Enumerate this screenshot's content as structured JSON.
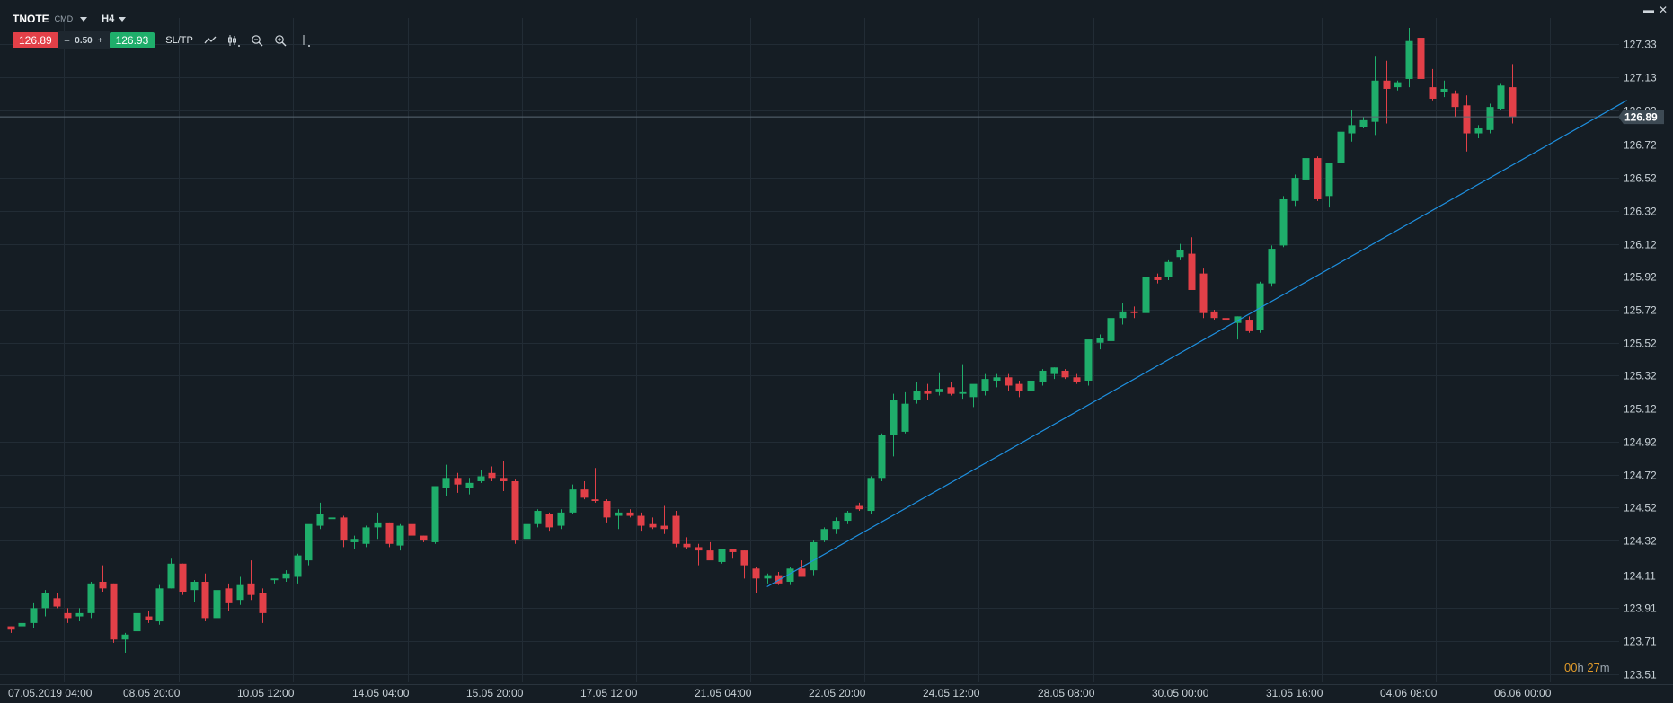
{
  "header": {
    "symbol": "TNOTE",
    "symbol_type": "CMD",
    "timeframe": "H4",
    "sell_price": "126.89",
    "spread_minus": "–",
    "spread_value": "0.50",
    "spread_plus": "+",
    "buy_price": "126.93",
    "sltp_label": "SL/TP",
    "icons": [
      "line-chart-icon",
      "candles-icon",
      "zoom-out-icon",
      "zoom-in-icon",
      "crosshair-icon"
    ]
  },
  "window_controls": {
    "minimize": "▬",
    "close": "✕"
  },
  "countdown": {
    "hours": "00",
    "h": "h",
    "minutes": "27",
    "m": "m"
  },
  "colors": {
    "background": "#151d24",
    "grid": "#222c35",
    "bull": "#1fae6b",
    "bear": "#e24048",
    "trendline": "#1e90e0",
    "price_line": "#5b6973",
    "price_label_bg": "#3d4a54"
  },
  "chart_data": {
    "type": "candlestick",
    "instrument": "TNOTE",
    "timeframe": "H4",
    "y_ticks": [
      "127.33",
      "127.13",
      "126.93",
      "126.72",
      "126.52",
      "126.32",
      "126.12",
      "125.92",
      "125.72",
      "125.52",
      "125.32",
      "125.12",
      "124.92",
      "124.72",
      "124.52",
      "124.32",
      "124.11",
      "123.91",
      "123.71",
      "123.51"
    ],
    "ylim": [
      123.46,
      127.49
    ],
    "x_ticks": [
      "07.05.2019 04:00",
      "08.05 20:00",
      "10.05 12:00",
      "14.05 04:00",
      "15.05 20:00",
      "17.05 12:00",
      "21.05 04:00",
      "22.05 20:00",
      "24.05 12:00",
      "28.05 08:00",
      "30.05 00:00",
      "31.05 16:00",
      "04.06 08:00",
      "06.06 00:00"
    ],
    "current_price": "126.89",
    "grid": true,
    "trendline": {
      "from_bar": 66,
      "from_price": 124.04,
      "to_bar": 141,
      "to_price": 126.99
    },
    "candles": [
      [
        123.8,
        123.8,
        123.76,
        123.78
      ],
      [
        123.8,
        123.84,
        123.58,
        123.82
      ],
      [
        123.82,
        123.94,
        123.79,
        123.91
      ],
      [
        123.91,
        124.02,
        123.86,
        124.0
      ],
      [
        123.97,
        124.0,
        123.91,
        123.92
      ],
      [
        123.88,
        123.91,
        123.82,
        123.85
      ],
      [
        123.86,
        123.91,
        123.83,
        123.88
      ],
      [
        123.88,
        124.07,
        123.85,
        124.06
      ],
      [
        124.07,
        124.17,
        124.01,
        124.03
      ],
      [
        124.06,
        124.06,
        123.7,
        123.72
      ],
      [
        123.72,
        123.76,
        123.64,
        123.75
      ],
      [
        123.77,
        123.97,
        123.75,
        123.88
      ],
      [
        123.86,
        123.89,
        123.82,
        123.84
      ],
      [
        123.83,
        124.05,
        123.81,
        124.03
      ],
      [
        124.03,
        124.21,
        124.03,
        124.18
      ],
      [
        124.18,
        124.18,
        123.99,
        124.01
      ],
      [
        124.02,
        124.08,
        123.95,
        124.07
      ],
      [
        124.07,
        124.12,
        123.83,
        123.85
      ],
      [
        123.85,
        124.04,
        123.84,
        124.02
      ],
      [
        124.03,
        124.06,
        123.89,
        123.94
      ],
      [
        123.96,
        124.1,
        123.93,
        124.05
      ],
      [
        124.06,
        124.2,
        123.96,
        123.99
      ],
      [
        124.0,
        124.03,
        123.82,
        123.88
      ],
      [
        124.08,
        124.09,
        124.06,
        124.09
      ],
      [
        124.09,
        124.14,
        124.07,
        124.12
      ],
      [
        124.1,
        124.24,
        124.06,
        124.23
      ],
      [
        124.2,
        124.41,
        124.17,
        124.42
      ],
      [
        124.41,
        124.55,
        124.39,
        124.48
      ],
      [
        124.45,
        124.49,
        124.43,
        124.46
      ],
      [
        124.46,
        124.47,
        124.28,
        124.32
      ],
      [
        124.31,
        124.35,
        124.27,
        124.33
      ],
      [
        124.3,
        124.41,
        124.28,
        124.4
      ],
      [
        124.4,
        124.49,
        124.33,
        124.43
      ],
      [
        124.43,
        124.43,
        124.28,
        124.3
      ],
      [
        124.29,
        124.42,
        124.26,
        124.41
      ],
      [
        124.42,
        124.44,
        124.33,
        124.35
      ],
      [
        124.35,
        124.35,
        124.31,
        124.32
      ],
      [
        124.31,
        124.64,
        124.3,
        124.65
      ],
      [
        124.64,
        124.78,
        124.59,
        124.7
      ],
      [
        124.7,
        124.73,
        124.61,
        124.66
      ],
      [
        124.64,
        124.7,
        124.6,
        124.67
      ],
      [
        124.68,
        124.75,
        124.67,
        124.71
      ],
      [
        124.73,
        124.77,
        124.68,
        124.7
      ],
      [
        124.7,
        124.8,
        124.62,
        124.68
      ],
      [
        124.68,
        124.69,
        124.3,
        124.32
      ],
      [
        124.33,
        124.43,
        124.3,
        124.42
      ],
      [
        124.42,
        124.51,
        124.4,
        124.5
      ],
      [
        124.48,
        124.49,
        124.38,
        124.4
      ],
      [
        124.41,
        124.51,
        124.39,
        124.49
      ],
      [
        124.49,
        124.66,
        124.48,
        124.63
      ],
      [
        124.63,
        124.68,
        124.57,
        124.58
      ],
      [
        124.57,
        124.76,
        124.55,
        124.56
      ],
      [
        124.56,
        124.57,
        124.43,
        124.46
      ],
      [
        124.47,
        124.51,
        124.39,
        124.49
      ],
      [
        124.49,
        124.51,
        124.46,
        124.47
      ],
      [
        124.47,
        124.49,
        124.38,
        124.41
      ],
      [
        124.42,
        124.46,
        124.39,
        124.4
      ],
      [
        124.41,
        124.53,
        124.36,
        124.39
      ],
      [
        124.47,
        124.5,
        124.28,
        124.3
      ],
      [
        124.3,
        124.34,
        124.27,
        124.28
      ],
      [
        124.28,
        124.3,
        124.17,
        124.26
      ],
      [
        124.26,
        124.31,
        124.24,
        124.2
      ],
      [
        124.19,
        124.26,
        124.18,
        124.27
      ],
      [
        124.27,
        124.27,
        124.21,
        124.25
      ],
      [
        124.26,
        124.26,
        124.09,
        124.17
      ],
      [
        124.15,
        124.16,
        124.0,
        124.09
      ],
      [
        124.09,
        124.12,
        124.06,
        124.11
      ],
      [
        124.11,
        124.13,
        124.05,
        124.06
      ],
      [
        124.07,
        124.16,
        124.05,
        124.15
      ],
      [
        124.15,
        124.2,
        124.1,
        124.1
      ],
      [
        124.14,
        124.32,
        124.11,
        124.31
      ],
      [
        124.32,
        124.4,
        124.31,
        124.39
      ],
      [
        124.39,
        124.46,
        124.36,
        124.44
      ],
      [
        124.44,
        124.5,
        124.42,
        124.49
      ],
      [
        124.53,
        124.55,
        124.5,
        124.51
      ],
      [
        124.5,
        124.71,
        124.48,
        124.7
      ],
      [
        124.7,
        124.97,
        124.68,
        124.96
      ],
      [
        124.96,
        125.21,
        124.83,
        125.17
      ],
      [
        124.98,
        125.22,
        124.97,
        125.15
      ],
      [
        125.17,
        125.28,
        125.15,
        125.23
      ],
      [
        125.23,
        125.27,
        125.17,
        125.21
      ],
      [
        125.22,
        125.34,
        125.2,
        125.24
      ],
      [
        125.25,
        125.28,
        125.2,
        125.21
      ],
      [
        125.21,
        125.39,
        125.18,
        125.22
      ],
      [
        125.19,
        125.23,
        125.13,
        125.27
      ],
      [
        125.23,
        125.33,
        125.2,
        125.3
      ],
      [
        125.29,
        125.33,
        125.25,
        125.31
      ],
      [
        125.31,
        125.33,
        125.23,
        125.26
      ],
      [
        125.27,
        125.29,
        125.19,
        125.23
      ],
      [
        125.23,
        125.3,
        125.22,
        125.29
      ],
      [
        125.28,
        125.36,
        125.26,
        125.35
      ],
      [
        125.33,
        125.37,
        125.3,
        125.37
      ],
      [
        125.35,
        125.36,
        125.3,
        125.31
      ],
      [
        125.31,
        125.33,
        125.27,
        125.28
      ],
      [
        125.29,
        125.53,
        125.26,
        125.54
      ],
      [
        125.52,
        125.57,
        125.48,
        125.55
      ],
      [
        125.53,
        125.71,
        125.46,
        125.67
      ],
      [
        125.67,
        125.76,
        125.63,
        125.71
      ],
      [
        125.71,
        125.74,
        125.67,
        125.7
      ],
      [
        125.7,
        125.93,
        125.68,
        125.92
      ],
      [
        125.92,
        125.94,
        125.88,
        125.9
      ],
      [
        125.92,
        126.02,
        125.9,
        126.01
      ],
      [
        126.04,
        126.12,
        126.02,
        126.08
      ],
      [
        126.06,
        126.16,
        125.86,
        125.84
      ],
      [
        125.94,
        125.97,
        125.67,
        125.7
      ],
      [
        125.71,
        125.72,
        125.66,
        125.67
      ],
      [
        125.67,
        125.69,
        125.65,
        125.66
      ],
      [
        125.64,
        125.68,
        125.54,
        125.68
      ],
      [
        125.66,
        125.68,
        125.58,
        125.59
      ],
      [
        125.6,
        125.89,
        125.58,
        125.88
      ],
      [
        125.88,
        126.11,
        125.86,
        126.09
      ],
      [
        126.11,
        126.41,
        126.1,
        126.39
      ],
      [
        126.38,
        126.54,
        126.35,
        126.52
      ],
      [
        126.51,
        126.61,
        126.49,
        126.64
      ],
      [
        126.64,
        126.65,
        126.38,
        126.39
      ],
      [
        126.41,
        126.61,
        126.34,
        126.61
      ],
      [
        126.61,
        126.83,
        126.6,
        126.8
      ],
      [
        126.79,
        126.93,
        126.74,
        126.84
      ],
      [
        126.83,
        126.89,
        126.82,
        126.87
      ],
      [
        126.86,
        127.26,
        126.78,
        127.11
      ],
      [
        127.11,
        127.23,
        126.85,
        127.06
      ],
      [
        127.07,
        127.11,
        127.05,
        127.1
      ],
      [
        127.12,
        127.43,
        127.07,
        127.35
      ],
      [
        127.37,
        127.39,
        126.97,
        127.12
      ],
      [
        127.07,
        127.18,
        126.99,
        127.0
      ],
      [
        127.04,
        127.11,
        127.01,
        127.06
      ],
      [
        127.03,
        127.05,
        126.89,
        126.95
      ],
      [
        126.96,
        127.02,
        126.68,
        126.79
      ],
      [
        126.79,
        126.84,
        126.76,
        126.82
      ],
      [
        126.81,
        126.97,
        126.79,
        126.95
      ],
      [
        126.94,
        127.09,
        126.93,
        127.08
      ],
      [
        127.07,
        127.21,
        126.85,
        126.89
      ]
    ]
  }
}
